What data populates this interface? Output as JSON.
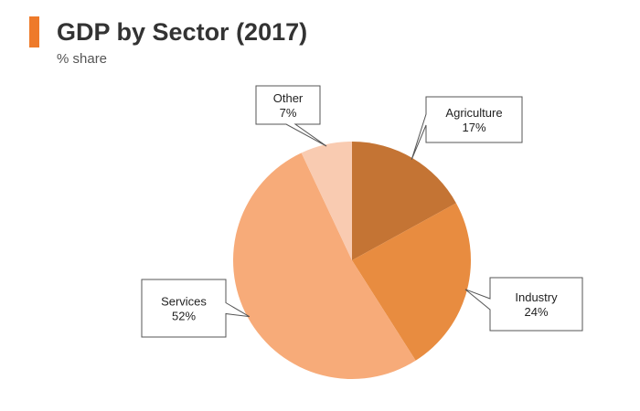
{
  "header": {
    "title": "GDP by Sector (2017)",
    "subtitle": "% share",
    "accent_color": "#ee7a2a"
  },
  "chart_data": {
    "type": "pie",
    "title": "GDP by Sector (2017)",
    "subtitle": "% share",
    "start_angle_deg": 0,
    "direction": "clockwise",
    "slices": [
      {
        "label": "Agriculture",
        "value": 17,
        "value_label": "17%",
        "color": "#c47434"
      },
      {
        "label": "Industry",
        "value": 24,
        "value_label": "24%",
        "color": "#e88c40"
      },
      {
        "label": "Services",
        "value": 52,
        "value_label": "52%",
        "color": "#f7ab79"
      },
      {
        "label": "Other",
        "value": 7,
        "value_label": "7%",
        "color": "#f9cbb1"
      }
    ],
    "legend": "callouts"
  }
}
